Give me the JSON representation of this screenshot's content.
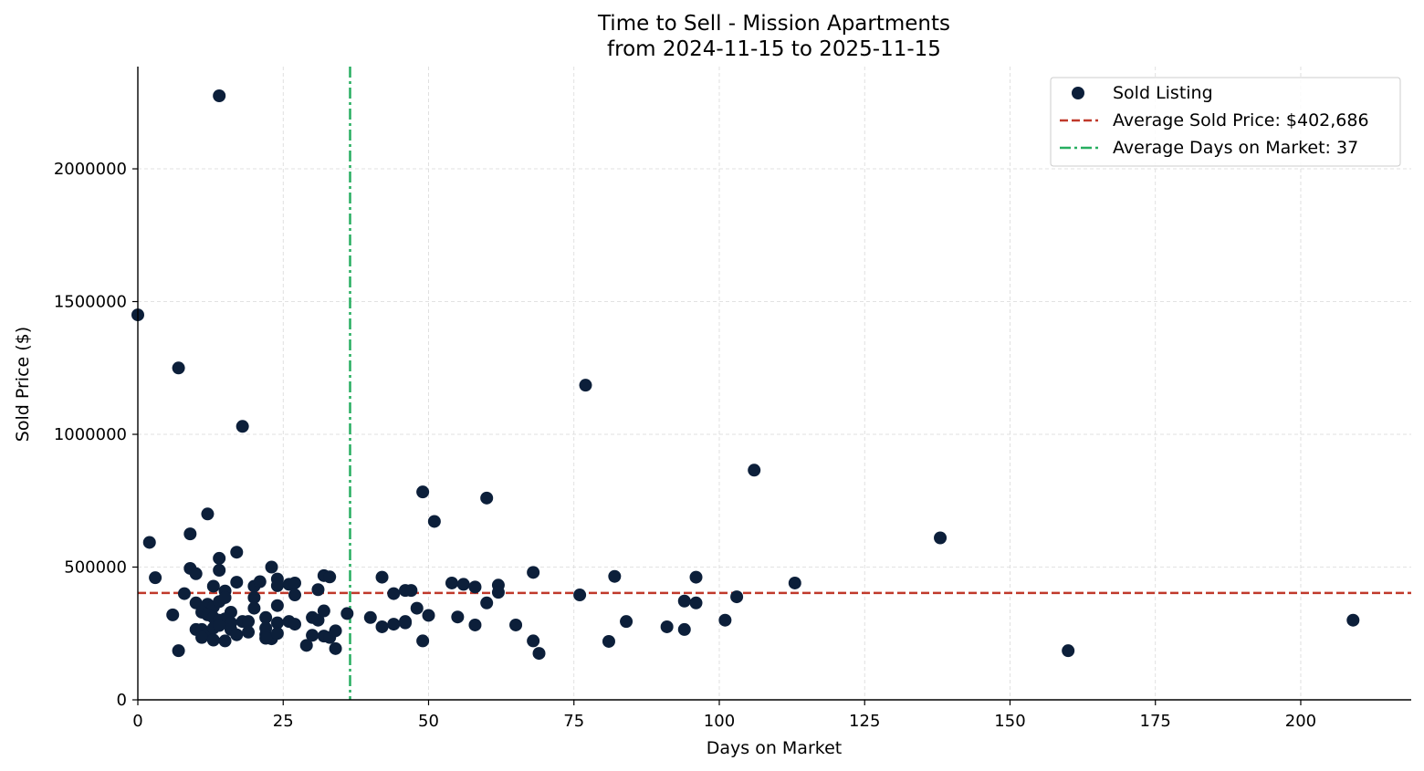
{
  "chart_data": {
    "type": "scatter",
    "title": "Time to Sell - Mission Apartments",
    "subtitle": "from 2024-11-15 to 2025-11-15",
    "xlabel": "Days on Market",
    "ylabel": "Sold Price ($)",
    "xlim": [
      0,
      219
    ],
    "ylim": [
      0,
      2385000
    ],
    "xticks": [
      0,
      25,
      50,
      75,
      100,
      125,
      150,
      175,
      200
    ],
    "yticks": [
      0,
      500000,
      1000000,
      1500000,
      2000000
    ],
    "xtick_labels": [
      "0",
      "25",
      "50",
      "75",
      "100",
      "125",
      "150",
      "175",
      "200"
    ],
    "ytick_labels": [
      "0",
      "500000",
      "1000000",
      "1500000",
      "2000000"
    ],
    "grid": true,
    "legend_position": "top-right",
    "colors": {
      "points": "#0c1f3a",
      "avg_price_line": "#c0392b",
      "avg_days_line": "#27ae60"
    },
    "series": [
      {
        "name": "Sold Listing",
        "points": [
          [
            14,
            2275000
          ],
          [
            0,
            1450000
          ],
          [
            7,
            1250000
          ],
          [
            18,
            1030000
          ],
          [
            77,
            1185000
          ],
          [
            106,
            865000
          ],
          [
            49,
            783000
          ],
          [
            60,
            760000
          ],
          [
            51,
            672000
          ],
          [
            138,
            610000
          ],
          [
            12,
            700000
          ],
          [
            9,
            625000
          ],
          [
            2,
            593000
          ],
          [
            17,
            556000
          ],
          [
            14,
            533000
          ],
          [
            3,
            460000
          ],
          [
            9,
            495000
          ],
          [
            10,
            475000
          ],
          [
            14,
            488000
          ],
          [
            13,
            428000
          ],
          [
            15,
            410000
          ],
          [
            17,
            443000
          ],
          [
            20,
            428000
          ],
          [
            21,
            445000
          ],
          [
            23,
            500000
          ],
          [
            24,
            455000
          ],
          [
            24,
            430000
          ],
          [
            26,
            435000
          ],
          [
            27,
            440000
          ],
          [
            27,
            395000
          ],
          [
            31,
            415000
          ],
          [
            32,
            468000
          ],
          [
            33,
            463000
          ],
          [
            8,
            400000
          ],
          [
            10,
            365000
          ],
          [
            12,
            360000
          ],
          [
            13,
            350000
          ],
          [
            14,
            370000
          ],
          [
            15,
            385000
          ],
          [
            16,
            330000
          ],
          [
            20,
            385000
          ],
          [
            20,
            345000
          ],
          [
            22,
            310000
          ],
          [
            24,
            355000
          ],
          [
            11,
            330000
          ],
          [
            12,
            320000
          ],
          [
            13,
            310000
          ],
          [
            14,
            300000
          ],
          [
            15,
            305000
          ],
          [
            16,
            290000
          ],
          [
            18,
            295000
          ],
          [
            19,
            295000
          ],
          [
            22,
            270000
          ],
          [
            24,
            290000
          ],
          [
            26,
            295000
          ],
          [
            27,
            285000
          ],
          [
            10,
            265000
          ],
          [
            11,
            265000
          ],
          [
            12,
            250000
          ],
          [
            13,
            270000
          ],
          [
            14,
            280000
          ],
          [
            16,
            265000
          ],
          [
            17,
            245000
          ],
          [
            19,
            255000
          ],
          [
            22,
            245000
          ],
          [
            23,
            230000
          ],
          [
            24,
            250000
          ],
          [
            11,
            235000
          ],
          [
            13,
            225000
          ],
          [
            15,
            222000
          ],
          [
            22,
            232000
          ],
          [
            6,
            320000
          ],
          [
            7,
            185000
          ],
          [
            29,
            205000
          ],
          [
            30,
            243000
          ],
          [
            30,
            310000
          ],
          [
            31,
            300000
          ],
          [
            32,
            335000
          ],
          [
            32,
            240000
          ],
          [
            33,
            235000
          ],
          [
            34,
            260000
          ],
          [
            34,
            193000
          ],
          [
            36,
            325000
          ],
          [
            40,
            310000
          ],
          [
            42,
            462000
          ],
          [
            42,
            275000
          ],
          [
            44,
            400000
          ],
          [
            44,
            285000
          ],
          [
            46,
            412000
          ],
          [
            46,
            295000
          ],
          [
            46,
            290000
          ],
          [
            47,
            412000
          ],
          [
            48,
            345000
          ],
          [
            49,
            222000
          ],
          [
            50,
            318000
          ],
          [
            54,
            440000
          ],
          [
            55,
            312000
          ],
          [
            56,
            435000
          ],
          [
            58,
            425000
          ],
          [
            58,
            282000
          ],
          [
            60,
            365000
          ],
          [
            62,
            432000
          ],
          [
            62,
            405000
          ],
          [
            65,
            282000
          ],
          [
            68,
            480000
          ],
          [
            68,
            222000
          ],
          [
            69,
            175000
          ],
          [
            76,
            395000
          ],
          [
            81,
            220000
          ],
          [
            82,
            465000
          ],
          [
            84,
            295000
          ],
          [
            91,
            275000
          ],
          [
            94,
            372000
          ],
          [
            94,
            265000
          ],
          [
            96,
            462000
          ],
          [
            96,
            365000
          ],
          [
            101,
            300000
          ],
          [
            103,
            388000
          ],
          [
            113,
            440000
          ],
          [
            160,
            185000
          ],
          [
            209,
            300000
          ]
        ]
      }
    ],
    "reference_lines": [
      {
        "name": "Average Sold Price: $402,686",
        "orientation": "horizontal",
        "value": 402686,
        "style": "dashed"
      },
      {
        "name": "Average Days on Market: 37",
        "orientation": "vertical",
        "value": 36.5,
        "style": "dash-dot"
      }
    ],
    "legend": [
      {
        "label": "Sold Listing",
        "kind": "marker"
      },
      {
        "label": "Average Sold Price: $402,686",
        "kind": "dashed"
      },
      {
        "label": "Average Days on Market: 37",
        "kind": "dash-dot"
      }
    ]
  }
}
